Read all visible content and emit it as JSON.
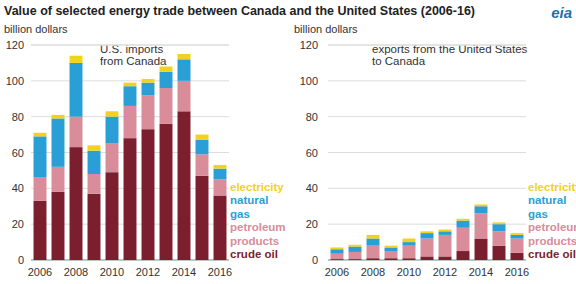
{
  "title": "Value of selected energy trade between Canada and the United States (2006-16)",
  "logo": "eia",
  "chart_data": [
    {
      "type": "bar",
      "stacked": true,
      "title": [
        "U.S. imports",
        "from Canada"
      ],
      "ylabel": "billion dollars",
      "categories": [
        "2006",
        null,
        "2008",
        null,
        "2010",
        null,
        "2012",
        null,
        "2014",
        null,
        "2016"
      ],
      "ylim": [
        0,
        120
      ],
      "yticks": [
        0,
        20,
        40,
        60,
        80,
        100,
        120
      ],
      "grid": true,
      "legend": "right",
      "series": [
        {
          "name": "crude oil",
          "color": "#7b1f2e",
          "values": [
            33,
            38,
            63,
            37,
            49,
            68,
            73,
            76,
            83,
            47,
            36
          ]
        },
        {
          "name": "petroleum products",
          "color": "#d98c9a",
          "values": [
            13,
            14,
            17,
            11,
            16,
            18,
            19,
            20,
            17,
            12,
            9
          ]
        },
        {
          "name": "natural gas",
          "color": "#2a9fd6",
          "values": [
            23,
            27,
            30,
            13,
            15,
            11,
            7,
            9,
            12,
            8,
            6
          ]
        },
        {
          "name": "electricity",
          "color": "#f3d21b",
          "values": [
            2,
            2,
            4,
            3,
            3,
            2,
            2,
            3,
            3,
            3,
            2
          ]
        }
      ]
    },
    {
      "type": "bar",
      "stacked": true,
      "title": [
        "exports from the United States",
        "to Canada"
      ],
      "ylabel": "billion dollars",
      "categories": [
        "2006",
        null,
        "2008",
        null,
        "2010",
        null,
        "2012",
        null,
        "2014",
        null,
        "2016"
      ],
      "ylim": [
        0,
        120
      ],
      "yticks": [
        0,
        20,
        40,
        60,
        80,
        100,
        120
      ],
      "grid": true,
      "legend": "right",
      "series": [
        {
          "name": "crude oil",
          "color": "#7b1f2e",
          "values": [
            0.5,
            0.5,
            1,
            1,
            1,
            2,
            2,
            5,
            12,
            8,
            4
          ]
        },
        {
          "name": "petroleum products",
          "color": "#d98c9a",
          "values": [
            3,
            4,
            7,
            4,
            7,
            10,
            12,
            13,
            14,
            8,
            8
          ]
        },
        {
          "name": "natural gas",
          "color": "#2a9fd6",
          "values": [
            2.5,
            3,
            4,
            2,
            2,
            3,
            2,
            4,
            4,
            4,
            2
          ]
        },
        {
          "name": "electricity",
          "color": "#f3d21b",
          "values": [
            1,
            1,
            2,
            1,
            2,
            1,
            1,
            1,
            1,
            1,
            1
          ]
        }
      ]
    }
  ]
}
